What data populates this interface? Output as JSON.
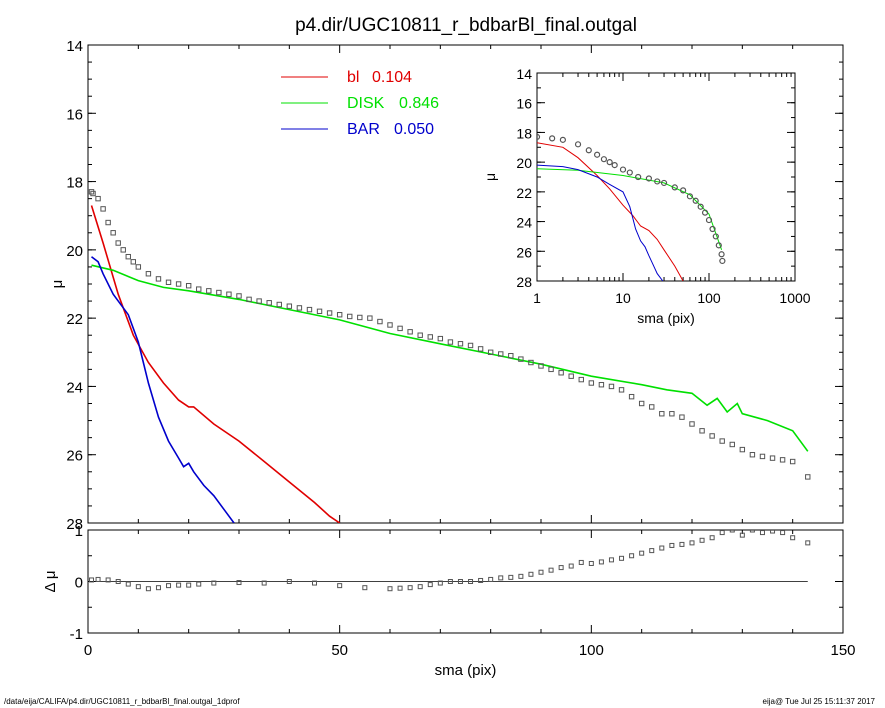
{
  "title": "p4.dir/UGC10811_r_bdbarBl_final.outgal",
  "footer": {
    "left": "/data/eija/CALIFA/p4.dir/UGC10811_r_bdbarBl_final.outgal_1dprof",
    "right": "eija@  Tue Jul 25 15:11:37 2017"
  },
  "colors": {
    "bl": "#e00000",
    "disk": "#00e000",
    "bar": "#0000cc",
    "data": "#555555"
  },
  "chart_data": [
    {
      "id": "main",
      "type": "line",
      "title": "p4.dir/UGC10811_r_bdbarBl_final.outgal",
      "xlabel": "",
      "ylabel": "μ",
      "xlim": [
        0,
        150
      ],
      "ylim": [
        28,
        14
      ],
      "yticks": [
        14,
        16,
        18,
        20,
        22,
        24,
        26,
        28
      ],
      "legend": [
        {
          "name": "bl",
          "value": "0.104",
          "color": "#e00000"
        },
        {
          "name": "DISK",
          "value": "0.846",
          "color": "#00e000"
        },
        {
          "name": "BAR",
          "value": "0.050",
          "color": "#0000cc"
        }
      ],
      "series": [
        {
          "name": "bl",
          "color": "#e00000",
          "x": [
            0.7,
            3,
            6,
            9,
            12,
            15,
            18,
            20,
            21,
            25,
            30,
            35,
            40,
            45,
            48,
            50
          ],
          "y": [
            18.7,
            19.8,
            21.3,
            22.5,
            23.3,
            23.9,
            24.4,
            24.6,
            24.6,
            25.1,
            25.6,
            26.2,
            26.8,
            27.4,
            27.8,
            28.0
          ]
        },
        {
          "name": "DISK",
          "color": "#00e000",
          "x": [
            0.7,
            5,
            10,
            15,
            20,
            30,
            40,
            50,
            60,
            70,
            80,
            90,
            100,
            110,
            115,
            120,
            123,
            125,
            127,
            129,
            130,
            135,
            140,
            143
          ],
          "y": [
            20.45,
            20.6,
            20.9,
            21.1,
            21.2,
            21.45,
            21.75,
            22.05,
            22.45,
            22.75,
            23.05,
            23.35,
            23.7,
            23.95,
            24.1,
            24.2,
            24.55,
            24.35,
            24.75,
            24.5,
            24.8,
            25.0,
            25.3,
            25.9
          ]
        },
        {
          "name": "BAR",
          "color": "#0000cc",
          "x": [
            0.7,
            2,
            3,
            5,
            8,
            10,
            12,
            14,
            16,
            18,
            19,
            20,
            21,
            23,
            25,
            27,
            29
          ],
          "y": [
            20.2,
            20.35,
            20.7,
            21.3,
            21.9,
            22.7,
            23.9,
            24.9,
            25.6,
            26.1,
            26.35,
            26.25,
            26.5,
            26.9,
            27.2,
            27.6,
            28.0
          ]
        },
        {
          "name": "data",
          "color": "#555555",
          "marker": "square",
          "x": [
            0.7,
            1,
            2,
            3,
            4,
            5,
            6,
            7,
            8,
            9,
            10,
            12,
            14,
            16,
            18,
            20,
            22,
            24,
            26,
            28,
            30,
            32,
            34,
            36,
            38,
            40,
            42,
            44,
            46,
            48,
            50,
            52,
            54,
            56,
            58,
            60,
            62,
            64,
            66,
            68,
            70,
            72,
            74,
            76,
            78,
            80,
            82,
            84,
            86,
            88,
            90,
            92,
            94,
            96,
            98,
            100,
            102,
            104,
            106,
            108,
            110,
            112,
            114,
            116,
            118,
            120,
            122,
            124,
            126,
            128,
            130,
            132,
            134,
            136,
            138,
            140,
            143
          ],
          "y": [
            18.3,
            18.35,
            18.5,
            18.8,
            19.2,
            19.5,
            19.8,
            20.0,
            20.2,
            20.35,
            20.5,
            20.7,
            20.85,
            20.95,
            21.0,
            21.05,
            21.15,
            21.2,
            21.25,
            21.3,
            21.35,
            21.45,
            21.5,
            21.55,
            21.6,
            21.65,
            21.7,
            21.75,
            21.8,
            21.85,
            21.9,
            21.95,
            21.98,
            22.0,
            22.1,
            22.2,
            22.3,
            22.4,
            22.5,
            22.55,
            22.6,
            22.7,
            22.75,
            22.8,
            22.9,
            23.0,
            23.05,
            23.1,
            23.2,
            23.3,
            23.4,
            23.5,
            23.6,
            23.7,
            23.8,
            23.9,
            23.95,
            24.0,
            24.1,
            24.3,
            24.5,
            24.6,
            24.8,
            24.8,
            24.9,
            25.1,
            25.3,
            25.45,
            25.6,
            25.7,
            25.85,
            26.0,
            26.05,
            26.1,
            26.15,
            26.2,
            26.65
          ]
        }
      ]
    },
    {
      "id": "residual",
      "type": "scatter",
      "xlabel": "sma (pix)",
      "ylabel": "Δ μ",
      "xlim": [
        0,
        150
      ],
      "ylim": [
        -1,
        1
      ],
      "xticks": [
        0,
        50,
        100,
        150
      ],
      "yticks": [
        -1,
        0,
        1
      ],
      "series": [
        {
          "name": "residual",
          "color": "#555555",
          "marker": "square",
          "x": [
            0.7,
            2,
            4,
            6,
            8,
            10,
            12,
            14,
            16,
            18,
            20,
            22,
            25,
            30,
            35,
            40,
            45,
            50,
            55,
            60,
            62,
            64,
            66,
            68,
            70,
            72,
            74,
            76,
            78,
            80,
            82,
            84,
            86,
            88,
            90,
            92,
            94,
            96,
            98,
            100,
            102,
            104,
            106,
            108,
            110,
            112,
            114,
            116,
            118,
            120,
            122,
            124,
            126,
            128,
            130,
            132,
            134,
            136,
            138,
            140,
            143
          ],
          "y": [
            0.03,
            0.04,
            0.03,
            0.0,
            -0.05,
            -0.1,
            -0.14,
            -0.12,
            -0.08,
            -0.07,
            -0.07,
            -0.05,
            -0.03,
            -0.02,
            -0.03,
            -0.0,
            -0.03,
            -0.08,
            -0.12,
            -0.14,
            -0.13,
            -0.12,
            -0.1,
            -0.06,
            -0.03,
            0.0,
            0.0,
            0.0,
            0.02,
            0.04,
            0.07,
            0.08,
            0.1,
            0.14,
            0.18,
            0.22,
            0.27,
            0.3,
            0.37,
            0.35,
            0.38,
            0.42,
            0.45,
            0.5,
            0.55,
            0.6,
            0.65,
            0.7,
            0.72,
            0.75,
            0.8,
            0.85,
            0.95,
            1.0,
            0.9,
            1.0,
            0.95,
            0.98,
            0.95,
            0.85,
            0.75
          ]
        }
      ]
    },
    {
      "id": "inset",
      "type": "line",
      "xlabel": "sma (pix)",
      "ylabel": "μ",
      "xscale": "log",
      "xlim": [
        1,
        1000
      ],
      "ylim": [
        28,
        14
      ],
      "xticks": [
        1,
        10,
        100,
        1000
      ],
      "yticks": [
        14,
        16,
        18,
        20,
        22,
        24,
        26,
        28
      ],
      "series": [
        {
          "name": "bl",
          "color": "#e00000",
          "x": [
            1,
            2,
            3,
            5,
            7,
            10,
            13,
            16,
            20,
            25,
            30,
            40,
            50
          ],
          "y": [
            18.7,
            19.0,
            19.7,
            20.9,
            21.8,
            22.9,
            23.6,
            24.3,
            24.6,
            25.2,
            25.9,
            27.0,
            28.0
          ]
        },
        {
          "name": "DISK",
          "color": "#00e000",
          "x": [
            1,
            3,
            10,
            30,
            60,
            100,
            140
          ],
          "y": [
            20.45,
            20.55,
            20.9,
            21.4,
            22.2,
            23.5,
            25.9
          ]
        },
        {
          "name": "BAR",
          "color": "#0000cc",
          "x": [
            1,
            2,
            3,
            5,
            7,
            10,
            12,
            14,
            16,
            18,
            20,
            22,
            25,
            29
          ],
          "y": [
            20.2,
            20.3,
            20.5,
            21.0,
            21.5,
            22.0,
            23.0,
            24.5,
            25.3,
            25.7,
            26.3,
            26.8,
            27.5,
            28.0
          ]
        },
        {
          "name": "data",
          "color": "#555555",
          "marker": "circle",
          "x": [
            1,
            1.5,
            2,
            3,
            4,
            5,
            6,
            7,
            8,
            10,
            12,
            15,
            20,
            25,
            30,
            40,
            50,
            60,
            70,
            80,
            90,
            100,
            110,
            120,
            130,
            140,
            143
          ],
          "y": [
            18.3,
            18.4,
            18.5,
            18.8,
            19.2,
            19.5,
            19.8,
            20.0,
            20.2,
            20.5,
            20.7,
            21.0,
            21.1,
            21.3,
            21.4,
            21.7,
            21.9,
            22.3,
            22.6,
            23.0,
            23.4,
            23.9,
            24.5,
            25.0,
            25.6,
            26.2,
            26.65
          ]
        }
      ]
    }
  ]
}
